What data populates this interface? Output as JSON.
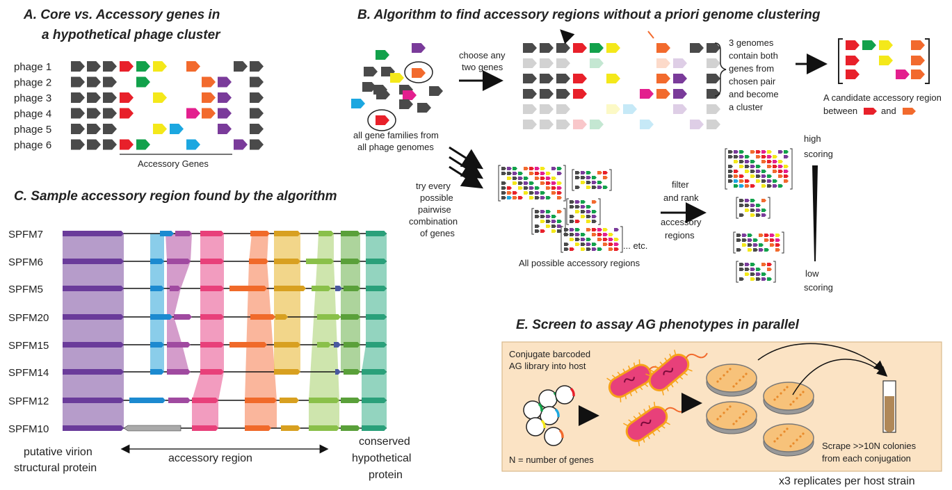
{
  "panelA": {
    "title1": "A. Core vs. Accessory genes in",
    "title2": "a hypothetical phage cluster",
    "phages": [
      "phage 1",
      "phage 2",
      "phage 3",
      "phage 4",
      "phage 5",
      "phage 6"
    ],
    "accessory_label": "Accessory Genes"
  },
  "panelB": {
    "title": "B. Algorithm to find accessory regions without a priori genome clustering",
    "families_label1": "all gene families from",
    "families_label2": "all phage genomes",
    "choose1": "choose any",
    "choose2": "two genes",
    "genomes_note": [
      "3 genomes",
      "contain both",
      "genes from",
      "chosen pair",
      "and become",
      "a cluster"
    ],
    "candidate1": "A candidate accessory region",
    "candidate_between": "between",
    "candidate_and": "and",
    "try_every": [
      "try every",
      "possible",
      "pairwise",
      "combination",
      "of genes"
    ],
    "all_possible": "All possible accessory regions",
    "etc": "... etc.",
    "filter": [
      "filter",
      "and rank",
      "accessory",
      "regions"
    ],
    "high": [
      "high",
      "scoring"
    ],
    "low": [
      "low",
      "scoring"
    ]
  },
  "panelC": {
    "title": "C. Sample accessory region found by the algorithm",
    "strains": [
      "SPFM7",
      "SPFM6",
      "SPFM5",
      "SPFM20",
      "SPFM15",
      "SPFM14",
      "SPFM12",
      "SPFM10"
    ],
    "left_label1": "putative virion",
    "left_label2": "structural protein",
    "middle_label": "accessory region",
    "right_label": [
      "conserved",
      "hypothetical",
      "protein"
    ]
  },
  "panelE": {
    "title": "E. Screen to assay AG phenotypes in parallel",
    "conjugate1": "Conjugate barcoded",
    "conjugate2": "AG library into host",
    "n_label": "N = number of genes",
    "scrape1": "Scrape >>10N colonies",
    "scrape2": "from each conjugation",
    "replicates": "x3 replicates per host strain"
  },
  "colors": {
    "core": "#4a4a4a",
    "red": "#e8202a",
    "green": "#12a14b",
    "yellow": "#f4e81a",
    "orange": "#f26a2d",
    "purple": "#7a3b9a",
    "magenta": "#e31f8e",
    "blue": "#1ca7e0"
  }
}
